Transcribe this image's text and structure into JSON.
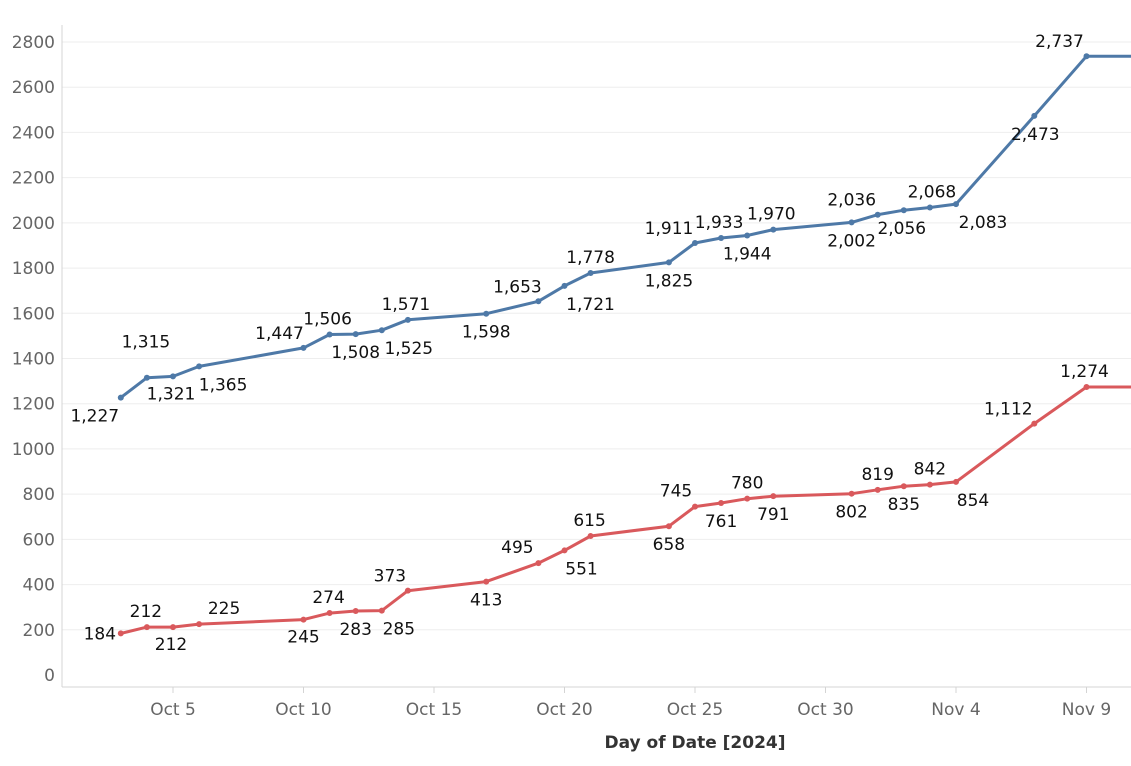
{
  "chart_data": {
    "type": "line",
    "xlabel": "Day of Date [2024]",
    "ylabel": "",
    "ylim": [
      0,
      2800
    ],
    "yticks": [
      0,
      200,
      400,
      600,
      800,
      1000,
      1200,
      1400,
      1600,
      1800,
      2000,
      2200,
      2400,
      2600,
      2800
    ],
    "ytick_labels": [
      "0",
      "200",
      "400",
      "600",
      "800",
      "1000",
      "1200",
      "1400",
      "1600",
      "1800",
      "2000",
      "2200",
      "2400",
      "2600",
      "2800"
    ],
    "xlim": [
      "2024-09-30",
      "2024-11-11"
    ],
    "xticks": [
      "2024-10-05",
      "2024-10-10",
      "2024-10-15",
      "2024-10-20",
      "2024-10-25",
      "2024-10-30",
      "2024-11-04",
      "2024-11-09"
    ],
    "xtick_labels": [
      "Oct 5",
      "Oct 10",
      "Oct 15",
      "Oct 20",
      "Oct 25",
      "Oct 30",
      "Nov 4",
      "Nov 9"
    ],
    "grid": true,
    "series": [
      {
        "color": "#4e79a7",
        "points": [
          {
            "x": "2024-10-03",
            "y": 1227,
            "label": "1,227"
          },
          {
            "x": "2024-10-04",
            "y": 1315,
            "label": "1,315"
          },
          {
            "x": "2024-10-05",
            "y": 1321,
            "label": "1,321"
          },
          {
            "x": "2024-10-06",
            "y": 1365,
            "label": "1,365"
          },
          {
            "x": "2024-10-10",
            "y": 1447,
            "label": "1,447"
          },
          {
            "x": "2024-10-11",
            "y": 1506,
            "label": "1,506"
          },
          {
            "x": "2024-10-12",
            "y": 1508,
            "label": "1,508"
          },
          {
            "x": "2024-10-13",
            "y": 1525,
            "label": "1,525"
          },
          {
            "x": "2024-10-14",
            "y": 1571,
            "label": "1,571"
          },
          {
            "x": "2024-10-17",
            "y": 1598,
            "label": "1,598"
          },
          {
            "x": "2024-10-19",
            "y": 1653,
            "label": "1,653"
          },
          {
            "x": "2024-10-20",
            "y": 1721,
            "label": "1,721"
          },
          {
            "x": "2024-10-21",
            "y": 1778,
            "label": "1,778"
          },
          {
            "x": "2024-10-24",
            "y": 1825,
            "label": "1,825"
          },
          {
            "x": "2024-10-25",
            "y": 1911,
            "label": "1,911"
          },
          {
            "x": "2024-10-26",
            "y": 1933,
            "label": "1,933"
          },
          {
            "x": "2024-10-27",
            "y": 1944,
            "label": "1,944"
          },
          {
            "x": "2024-10-28",
            "y": 1970,
            "label": "1,970"
          },
          {
            "x": "2024-10-31",
            "y": 2002,
            "label": "2,002"
          },
          {
            "x": "2024-11-01",
            "y": 2036,
            "label": "2,036"
          },
          {
            "x": "2024-11-02",
            "y": 2056,
            "label": "2,056"
          },
          {
            "x": "2024-11-03",
            "y": 2068,
            "label": "2,068"
          },
          {
            "x": "2024-11-04",
            "y": 2083,
            "label": "2,083"
          },
          {
            "x": "2024-11-07",
            "y": 2473,
            "label": "2,473"
          },
          {
            "x": "2024-11-09",
            "y": 2737,
            "label": "2,737"
          },
          {
            "x": "2024-11-11",
            "y": 2737,
            "label": ""
          }
        ]
      },
      {
        "color": "#d9595c",
        "points": [
          {
            "x": "2024-10-03",
            "y": 184,
            "label": "184"
          },
          {
            "x": "2024-10-04",
            "y": 212,
            "label": "212"
          },
          {
            "x": "2024-10-05",
            "y": 212,
            "label": "212"
          },
          {
            "x": "2024-10-06",
            "y": 225,
            "label": "225"
          },
          {
            "x": "2024-10-10",
            "y": 245,
            "label": "245"
          },
          {
            "x": "2024-10-11",
            "y": 274,
            "label": "274"
          },
          {
            "x": "2024-10-12",
            "y": 283,
            "label": "283"
          },
          {
            "x": "2024-10-13",
            "y": 285,
            "label": "285"
          },
          {
            "x": "2024-10-14",
            "y": 373,
            "label": "373"
          },
          {
            "x": "2024-10-17",
            "y": 413,
            "label": "413"
          },
          {
            "x": "2024-10-19",
            "y": 495,
            "label": "495"
          },
          {
            "x": "2024-10-20",
            "y": 551,
            "label": "551"
          },
          {
            "x": "2024-10-21",
            "y": 615,
            "label": "615"
          },
          {
            "x": "2024-10-24",
            "y": 658,
            "label": "658"
          },
          {
            "x": "2024-10-25",
            "y": 745,
            "label": "745"
          },
          {
            "x": "2024-10-26",
            "y": 761,
            "label": "761"
          },
          {
            "x": "2024-10-27",
            "y": 780,
            "label": "780"
          },
          {
            "x": "2024-10-28",
            "y": 791,
            "label": "791"
          },
          {
            "x": "2024-10-31",
            "y": 802,
            "label": "802"
          },
          {
            "x": "2024-11-01",
            "y": 819,
            "label": "819"
          },
          {
            "x": "2024-11-02",
            "y": 835,
            "label": "835"
          },
          {
            "x": "2024-11-03",
            "y": 842,
            "label": "842"
          },
          {
            "x": "2024-11-04",
            "y": 854,
            "label": "854"
          },
          {
            "x": "2024-11-07",
            "y": 1112,
            "label": "1,112"
          },
          {
            "x": "2024-11-09",
            "y": 1274,
            "label": "1,274"
          },
          {
            "x": "2024-11-11",
            "y": 1274,
            "label": ""
          }
        ]
      }
    ]
  }
}
